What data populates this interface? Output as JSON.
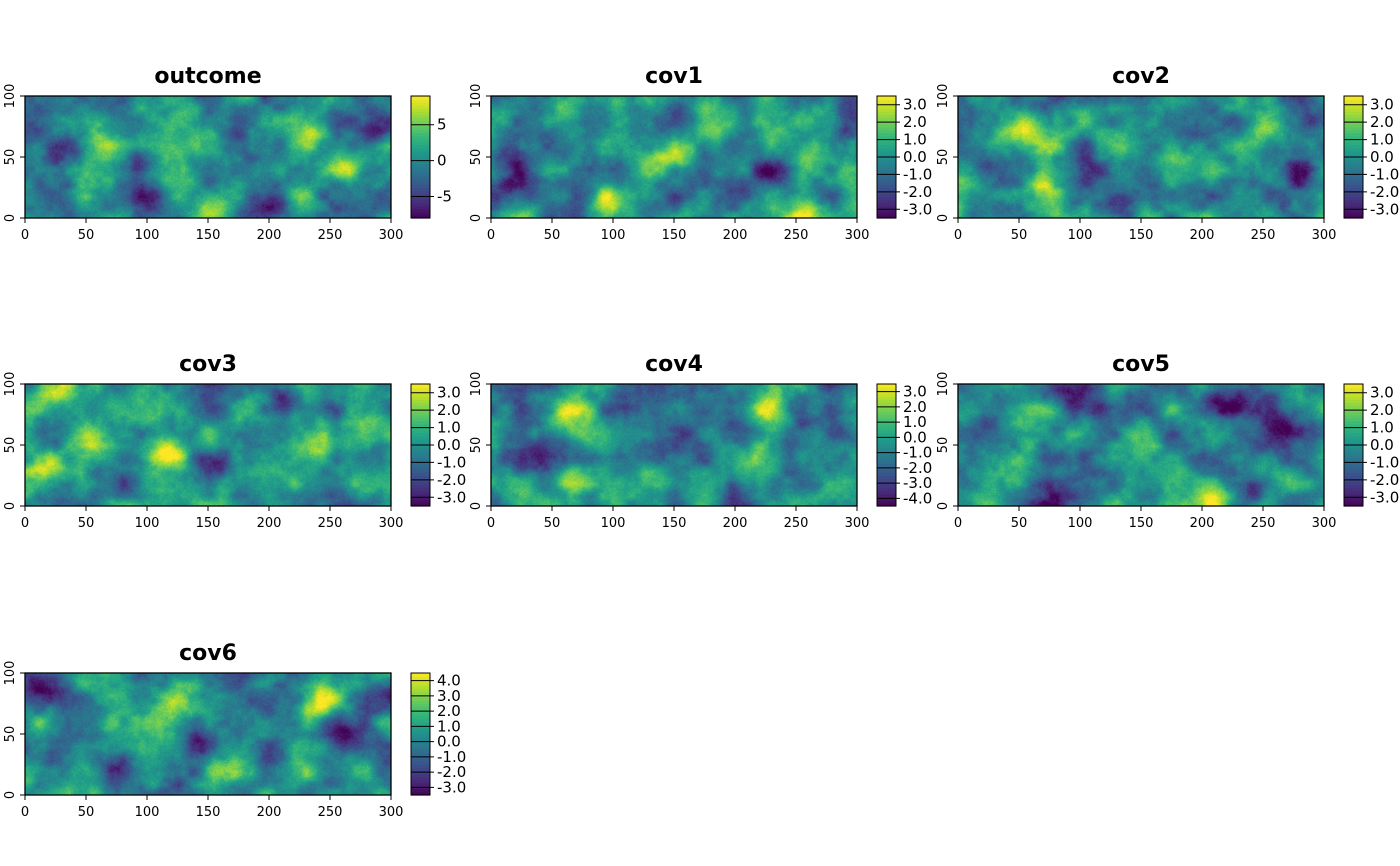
{
  "chart_data": [
    {
      "type": "heatmap",
      "title": "outcome",
      "xlim": [
        0,
        300
      ],
      "ylim": [
        0,
        100
      ],
      "xticks": [
        "0",
        "50",
        "100",
        "150",
        "200",
        "250",
        "300"
      ],
      "yticks": [
        "0",
        "50",
        "100"
      ],
      "legend_ticks": [
        "5",
        "0",
        "-5"
      ],
      "legend_range": [
        -8,
        9
      ],
      "colormap": "viridis",
      "noise_seed": 11,
      "blobs": [
        {
          "x": 55,
          "y": 60,
          "v": 1.0
        },
        {
          "x": 40,
          "y": 55,
          "v": -0.7
        },
        {
          "x": 90,
          "y": 45,
          "v": -0.9
        },
        {
          "x": 200,
          "y": 8,
          "v": -0.8
        },
        {
          "x": 262,
          "y": 45,
          "v": 1.0
        },
        {
          "x": 240,
          "y": 70,
          "v": 0.7
        },
        {
          "x": 285,
          "y": 75,
          "v": -0.6
        },
        {
          "x": 150,
          "y": 5,
          "v": 0.7
        },
        {
          "x": 5,
          "y": 75,
          "v": -0.5
        },
        {
          "x": 100,
          "y": 10,
          "v": -0.6
        }
      ]
    },
    {
      "type": "heatmap",
      "title": "cov1",
      "xlim": [
        0,
        300
      ],
      "ylim": [
        0,
        100
      ],
      "xticks": [
        "0",
        "50",
        "100",
        "150",
        "200",
        "250",
        "300"
      ],
      "yticks": [
        "0",
        "50",
        "100"
      ],
      "legend_ticks": [
        "3.0",
        "2.0",
        "1.0",
        "0.0",
        "-1.0",
        "-2.0",
        "-3.0"
      ],
      "legend_range": [
        -3.5,
        3.5
      ],
      "colormap": "viridis",
      "noise_seed": 23,
      "blobs": [
        {
          "x": 95,
          "y": 15,
          "v": 1.0
        },
        {
          "x": 150,
          "y": 50,
          "v": 0.9
        },
        {
          "x": 180,
          "y": 75,
          "v": 0.7
        },
        {
          "x": 255,
          "y": 10,
          "v": 0.9
        },
        {
          "x": 265,
          "y": 55,
          "v": 0.6
        },
        {
          "x": 10,
          "y": 50,
          "v": -0.8
        },
        {
          "x": 100,
          "y": 40,
          "v": -0.7
        },
        {
          "x": 230,
          "y": 40,
          "v": -0.8
        },
        {
          "x": 20,
          "y": 25,
          "v": -0.6
        },
        {
          "x": 290,
          "y": 80,
          "v": -0.6
        },
        {
          "x": 60,
          "y": 85,
          "v": 0.5
        }
      ]
    },
    {
      "type": "heatmap",
      "title": "cov2",
      "xlim": [
        0,
        300
      ],
      "ylim": [
        0,
        100
      ],
      "xticks": [
        "0",
        "50",
        "100",
        "150",
        "200",
        "250",
        "300"
      ],
      "yticks": [
        "0",
        "50",
        "100"
      ],
      "legend_ticks": [
        "3.0",
        "2.0",
        "1.0",
        "0.0",
        "-1.0",
        "-2.0",
        "-3.0"
      ],
      "legend_range": [
        -3.5,
        3.5
      ],
      "colormap": "viridis",
      "noise_seed": 37,
      "blobs": [
        {
          "x": 55,
          "y": 70,
          "v": 1.0
        },
        {
          "x": 65,
          "y": 30,
          "v": 0.8
        },
        {
          "x": 140,
          "y": 60,
          "v": 0.6
        },
        {
          "x": 250,
          "y": 70,
          "v": 0.6
        },
        {
          "x": 20,
          "y": 50,
          "v": -0.8
        },
        {
          "x": 110,
          "y": 40,
          "v": -0.7
        },
        {
          "x": 280,
          "y": 40,
          "v": -0.9
        },
        {
          "x": 135,
          "y": 8,
          "v": -0.7
        },
        {
          "x": 200,
          "y": 70,
          "v": -0.5
        },
        {
          "x": 290,
          "y": 85,
          "v": -0.6
        }
      ]
    },
    {
      "type": "heatmap",
      "title": "cov3",
      "xlim": [
        0,
        300
      ],
      "ylim": [
        0,
        100
      ],
      "xticks": [
        "0",
        "50",
        "100",
        "150",
        "200",
        "250",
        "300"
      ],
      "yticks": [
        "0",
        "50",
        "100"
      ],
      "legend_ticks": [
        "3.0",
        "2.0",
        "1.0",
        "0.0",
        "-1.0",
        "-2.0",
        "-3.0"
      ],
      "legend_range": [
        -3.5,
        3.5
      ],
      "colormap": "viridis",
      "noise_seed": 41,
      "blobs": [
        {
          "x": 20,
          "y": 35,
          "v": 1.0
        },
        {
          "x": 50,
          "y": 55,
          "v": 0.8
        },
        {
          "x": 115,
          "y": 45,
          "v": 0.9
        },
        {
          "x": 240,
          "y": 45,
          "v": 0.7
        },
        {
          "x": 270,
          "y": 35,
          "v": 0.6
        },
        {
          "x": 215,
          "y": 85,
          "v": -0.9
        },
        {
          "x": 150,
          "y": 30,
          "v": -0.6
        },
        {
          "x": 80,
          "y": 20,
          "v": -0.6
        },
        {
          "x": 180,
          "y": 10,
          "v": -0.5
        },
        {
          "x": 20,
          "y": 95,
          "v": 0.6
        }
      ]
    },
    {
      "type": "heatmap",
      "title": "cov4",
      "xlim": [
        0,
        300
      ],
      "ylim": [
        0,
        100
      ],
      "xticks": [
        "0",
        "50",
        "100",
        "150",
        "200",
        "250",
        "300"
      ],
      "yticks": [
        "0",
        "50",
        "100"
      ],
      "legend_ticks": [
        "3.0",
        "2.0",
        "1.0",
        "0.0",
        "-1.0",
        "-2.0",
        "-3.0",
        "-4.0"
      ],
      "legend_range": [
        -4.5,
        3.5
      ],
      "colormap": "viridis",
      "noise_seed": 53,
      "blobs": [
        {
          "x": 60,
          "y": 75,
          "v": 1.0
        },
        {
          "x": 65,
          "y": 20,
          "v": 0.9
        },
        {
          "x": 220,
          "y": 40,
          "v": 0.8
        },
        {
          "x": 230,
          "y": 80,
          "v": 0.7
        },
        {
          "x": 130,
          "y": 25,
          "v": 0.5
        },
        {
          "x": 40,
          "y": 40,
          "v": -0.7
        },
        {
          "x": 200,
          "y": 5,
          "v": -0.8
        },
        {
          "x": 160,
          "y": 60,
          "v": -0.5
        },
        {
          "x": 285,
          "y": 60,
          "v": -0.6
        },
        {
          "x": 110,
          "y": 95,
          "v": -0.5
        }
      ]
    },
    {
      "type": "heatmap",
      "title": "cov5",
      "xlim": [
        0,
        300
      ],
      "ylim": [
        0,
        100
      ],
      "xticks": [
        "0",
        "50",
        "100",
        "150",
        "200",
        "250",
        "300"
      ],
      "yticks": [
        "0",
        "50",
        "100"
      ],
      "legend_ticks": [
        "3.0",
        "2.0",
        "1.0",
        "0.0",
        "-1.0",
        "-2.0",
        "-3.0"
      ],
      "legend_range": [
        -3.5,
        3.5
      ],
      "colormap": "viridis",
      "noise_seed": 67,
      "blobs": [
        {
          "x": 150,
          "y": 40,
          "v": 0.8
        },
        {
          "x": 210,
          "y": 5,
          "v": 1.0
        },
        {
          "x": 255,
          "y": 25,
          "v": 0.8
        },
        {
          "x": 50,
          "y": 25,
          "v": 0.6
        },
        {
          "x": 90,
          "y": 90,
          "v": -0.8
        },
        {
          "x": 220,
          "y": 85,
          "v": -0.9
        },
        {
          "x": 270,
          "y": 70,
          "v": -0.9
        },
        {
          "x": 240,
          "y": 15,
          "v": -0.7
        },
        {
          "x": 75,
          "y": 8,
          "v": -0.6
        },
        {
          "x": 120,
          "y": 80,
          "v": -0.5
        }
      ]
    },
    {
      "type": "heatmap",
      "title": "cov6",
      "xlim": [
        0,
        300
      ],
      "ylim": [
        0,
        100
      ],
      "xticks": [
        "0",
        "50",
        "100",
        "150",
        "200",
        "250",
        "300"
      ],
      "yticks": [
        "0",
        "50",
        "100"
      ],
      "legend_ticks": [
        "4.0",
        "3.0",
        "2.0",
        "1.0",
        "0.0",
        "-1.0",
        "-2.0",
        "-3.0"
      ],
      "legend_range": [
        -3.5,
        4.5
      ],
      "colormap": "viridis",
      "noise_seed": 79,
      "blobs": [
        {
          "x": 160,
          "y": 20,
          "v": 1.0
        },
        {
          "x": 240,
          "y": 75,
          "v": 0.9
        },
        {
          "x": 15,
          "y": 60,
          "v": 0.6
        },
        {
          "x": 120,
          "y": 65,
          "v": 0.5
        },
        {
          "x": 260,
          "y": 50,
          "v": -0.9
        },
        {
          "x": 140,
          "y": 40,
          "v": -0.7
        },
        {
          "x": 10,
          "y": 90,
          "v": -0.7
        },
        {
          "x": 290,
          "y": 85,
          "v": -0.6
        },
        {
          "x": 70,
          "y": 30,
          "v": -0.5
        }
      ]
    }
  ]
}
